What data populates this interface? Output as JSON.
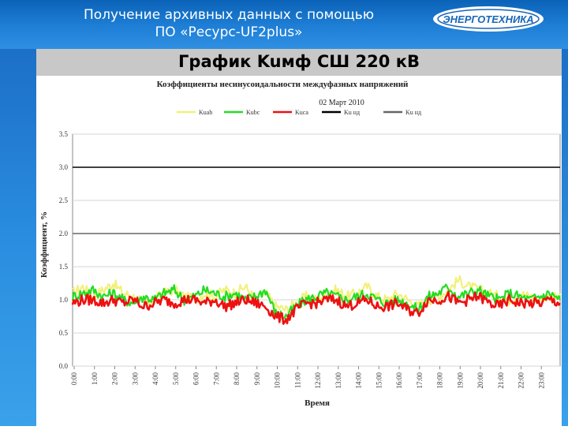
{
  "header": {
    "title_line1": "Получение архивных данных с помощью",
    "title_line2": "ПО «Ресурс-UF2plus»",
    "logo_text": "ЭНЕРГОТЕХНИКА"
  },
  "slide": {
    "heading": "График Kuмф  СШ 220 кВ"
  },
  "chart_data": {
    "type": "line",
    "title": "Коэффициенты несинусоидальности междуфазных напряжений",
    "subtitle": "02 Март 2010",
    "xlabel": "Время",
    "ylabel": "Коэффициент, %",
    "ylim": [
      0,
      3.5
    ],
    "yticks": [
      "0.0",
      "0.5",
      "1.0",
      "1.5",
      "2.0",
      "2.5",
      "3.0",
      "3.5"
    ],
    "xticks": [
      "0:00",
      "1:00",
      "2:00",
      "3:00",
      "4:00",
      "5:00",
      "6:00",
      "7:00",
      "8:00",
      "9:00",
      "10:00",
      "11:00",
      "12:00",
      "13:00",
      "14:00",
      "15:00",
      "16:00",
      "17:00",
      "18:00",
      "19:00",
      "20:00",
      "21:00",
      "22:00",
      "23:00"
    ],
    "grid": "horizontal",
    "legend_position": "top",
    "x": [
      "0:00",
      "0:30",
      "1:00",
      "1:30",
      "2:00",
      "2:30",
      "3:00",
      "3:30",
      "4:00",
      "4:30",
      "5:00",
      "5:30",
      "6:00",
      "6:30",
      "7:00",
      "7:30",
      "8:00",
      "8:30",
      "9:00",
      "9:30",
      "10:00",
      "10:30",
      "11:00",
      "11:30",
      "12:00",
      "12:30",
      "13:00",
      "13:30",
      "14:00",
      "14:30",
      "15:00",
      "15:30",
      "16:00",
      "16:30",
      "17:00",
      "17:30",
      "18:00",
      "18:30",
      "19:00",
      "19:30",
      "20:00",
      "20:30",
      "21:00",
      "21:30",
      "22:00",
      "22:30",
      "23:00",
      "23:30",
      "24:00"
    ],
    "series": [
      {
        "name": "Kuab",
        "color": "#f2f07a",
        "values": [
          1.1,
          1.2,
          1.05,
          1.15,
          1.25,
          1.1,
          1.05,
          0.95,
          1.0,
          1.1,
          1.15,
          1.05,
          1.0,
          1.1,
          1.05,
          1.15,
          1.1,
          1.2,
          1.0,
          1.1,
          0.9,
          0.85,
          0.95,
          1.05,
          1.0,
          1.1,
          1.15,
          1.05,
          1.1,
          1.2,
          1.05,
          1.0,
          1.1,
          1.0,
          0.9,
          1.0,
          1.05,
          1.15,
          1.3,
          1.2,
          1.15,
          1.1,
          1.05,
          1.0,
          1.1,
          1.05,
          1.0,
          1.05,
          1.1
        ]
      },
      {
        "name": "Kubc",
        "color": "#22dd22",
        "values": [
          1.05,
          1.1,
          1.15,
          1.05,
          1.1,
          1.0,
          0.95,
          1.05,
          1.0,
          1.1,
          1.15,
          1.0,
          1.05,
          1.15,
          1.1,
          1.05,
          1.1,
          1.0,
          1.05,
          1.15,
          0.8,
          0.75,
          0.9,
          1.0,
          1.05,
          1.1,
          1.05,
          1.0,
          1.05,
          1.1,
          1.0,
          0.95,
          1.0,
          0.95,
          0.85,
          1.05,
          1.1,
          1.2,
          1.05,
          1.1,
          1.15,
          1.05,
          1.0,
          1.1,
          1.05,
          1.0,
          1.05,
          1.1,
          1.0
        ]
      },
      {
        "name": "Kuca",
        "color": "#ee1111",
        "values": [
          0.95,
          1.0,
          1.0,
          0.95,
          1.0,
          0.95,
          1.0,
          0.9,
          0.95,
          1.0,
          0.95,
          1.0,
          1.0,
          0.95,
          1.0,
          0.9,
          0.95,
          1.0,
          0.95,
          0.9,
          0.75,
          0.7,
          0.85,
          0.95,
          0.95,
          1.0,
          1.0,
          0.9,
          0.95,
          1.0,
          0.9,
          0.9,
          0.95,
          0.85,
          0.8,
          1.0,
          1.0,
          1.05,
          0.95,
          1.0,
          1.05,
          0.95,
          0.9,
          1.0,
          0.95,
          0.95,
          0.95,
          1.0,
          0.95
        ]
      },
      {
        "name": "Ku нд",
        "color": "#000000",
        "values_constant": 3.0
      },
      {
        "name": "Ku нд",
        "color": "#666666",
        "values_constant": 2.0
      }
    ]
  }
}
